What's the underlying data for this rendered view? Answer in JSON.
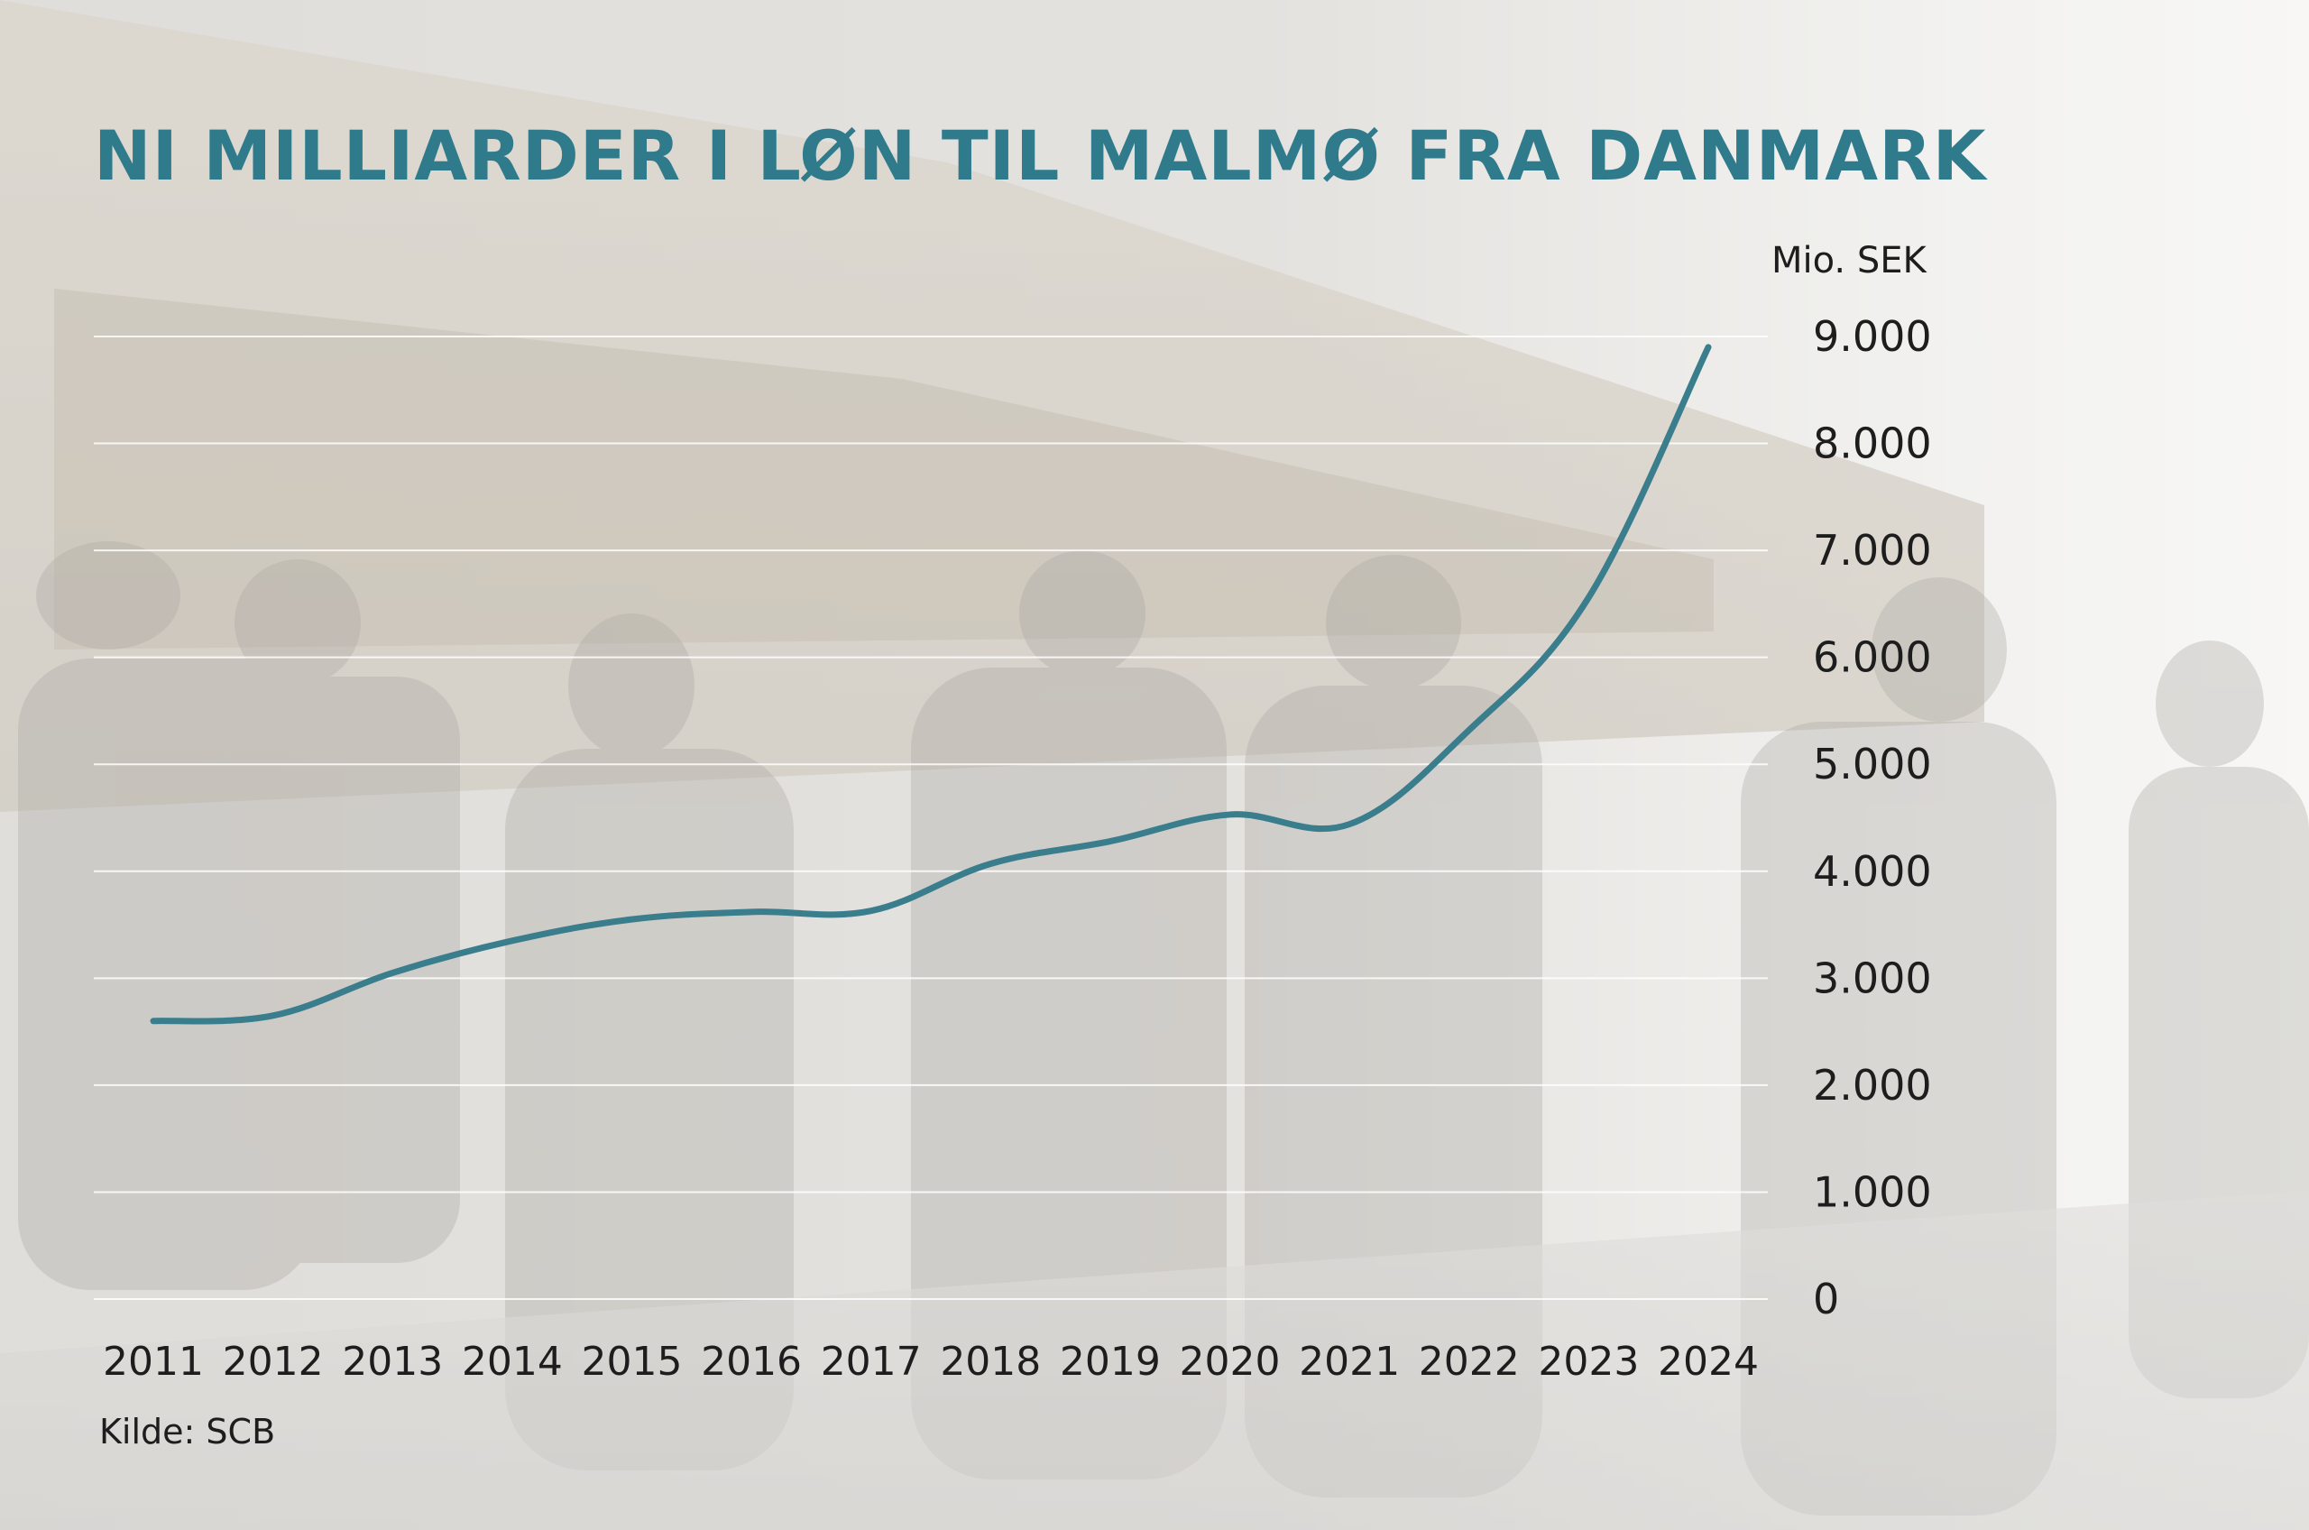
{
  "colors": {
    "line": "#3a7d8c",
    "title": "#2f7b8c",
    "gridline": "#ffffff"
  },
  "background_photo": "faded photo of commuters on a train platform in Malmö",
  "chart_data": {
    "type": "line",
    "title": "NI MILLIARDER I LØN TIL MALMØ FRA DANMARK",
    "unit_label": "Mio. SEK",
    "source": "Kilde: SCB",
    "x": [
      "2011",
      "2012",
      "2013",
      "2014",
      "2015",
      "2016",
      "2017",
      "2018",
      "2019",
      "2020",
      "2021",
      "2022",
      "2023",
      "2024"
    ],
    "series": [
      {
        "values": [
          2600,
          2650,
          3050,
          3350,
          3550,
          3620,
          3630,
          4070,
          4280,
          4530,
          4440,
          5320,
          6560,
          8900
        ]
      }
    ],
    "ylim": [
      0,
      9000
    ],
    "y_ticks": [
      0,
      1000,
      2000,
      3000,
      4000,
      5000,
      6000,
      7000,
      8000,
      9000
    ],
    "y_tick_labels": [
      "0",
      "1.000",
      "2.000",
      "3.000",
      "4.000",
      "5.000",
      "6.000",
      "7.000",
      "8.000",
      "9.000"
    ],
    "y_axis_side": "right",
    "grid": true
  }
}
